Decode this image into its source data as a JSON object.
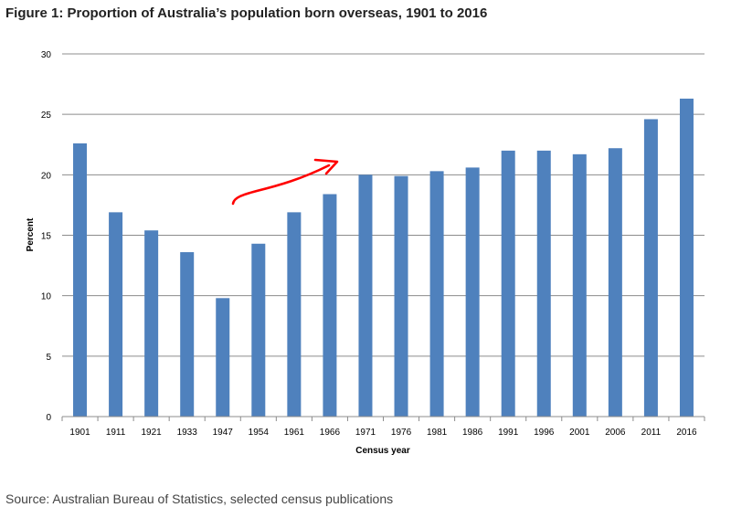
{
  "title": "Figure 1: Proportion of Australia’s population born overseas, 1901 to 2016",
  "source": "Source: Australian Bureau of Statistics, selected census publications",
  "chart_data": {
    "type": "bar",
    "categories": [
      "1901",
      "1911",
      "1921",
      "1933",
      "1947",
      "1954",
      "1961",
      "1966",
      "1971",
      "1976",
      "1981",
      "1986",
      "1991",
      "1996",
      "2001",
      "2006",
      "2011",
      "2016"
    ],
    "values": [
      22.6,
      16.9,
      15.4,
      13.6,
      9.8,
      14.3,
      16.9,
      18.4,
      20.0,
      19.9,
      20.3,
      20.6,
      22.0,
      22.0,
      21.7,
      22.2,
      24.6,
      26.3
    ],
    "xlabel": "Census year",
    "ylabel": "Percent",
    "ylim": [
      0,
      30
    ],
    "yticks": [
      0,
      5,
      10,
      15,
      20,
      25,
      30
    ],
    "grid": true,
    "bar_color": "#4F81BD",
    "annotation_color": "#FF0000"
  }
}
